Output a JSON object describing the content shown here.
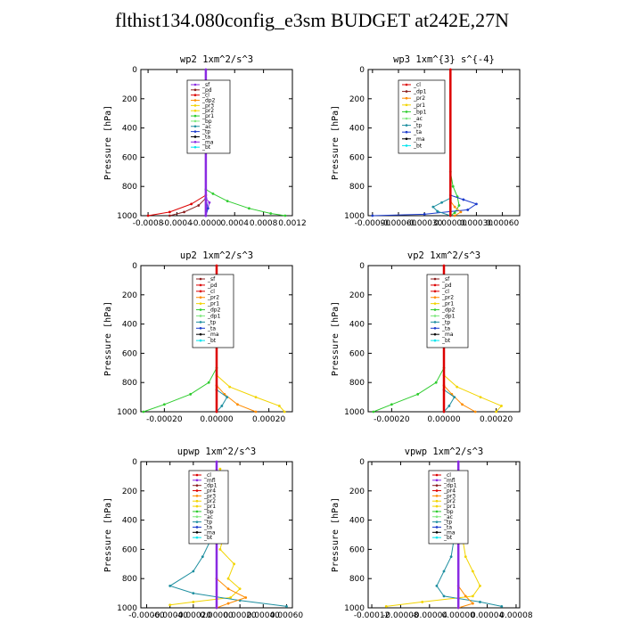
{
  "title": "flthist134.080config_e3sm  BUDGET at242E,27N",
  "colors": {
    "purple": "#8a2be2",
    "brown": "#8b2020",
    "red": "#dd0000",
    "orange": "#ff8c00",
    "yellow": "#f2d400",
    "green": "#2ecc2e",
    "ltgreen": "#7ee87e",
    "teal": "#1e8fa0",
    "blue": "#1a3acc",
    "black": "#000000",
    "cyan": "#00e5ee"
  },
  "chart_data": [
    {
      "type": "line",
      "title": "wp2   1xm^2/s^3",
      "ylabel": "Pressure [hPa]",
      "xlim": [
        -0.0009,
        0.0012
      ],
      "ylim": [
        1000,
        0
      ],
      "xticks": [
        "-0.0008",
        "-0.0004",
        "-0.0000",
        "0.0004",
        "0.0008",
        "0.0012"
      ],
      "xtick_values": [
        -0.0008,
        -0.0004,
        0,
        0.0004,
        0.0008,
        0.0012
      ],
      "yticks": [
        "0",
        "200",
        "400",
        "600",
        "800",
        "1000"
      ],
      "legend": [
        "_sf",
        "_pd",
        "_cl",
        "_dp2",
        "_pr3",
        "_pr2",
        "_pr1",
        "_bp",
        "_ac",
        "_tp",
        "_ta",
        "_ma",
        "_bt"
      ],
      "legend_colors": [
        "purple",
        "brown",
        "red",
        "orange",
        "yellow",
        "yellow",
        "green",
        "ltgreen",
        "teal",
        "blue",
        "black",
        "purple",
        "cyan"
      ],
      "series": [
        {
          "color": "green",
          "x": [
            0,
            0.0001,
            0.0003,
            0.0006,
            0.0009,
            0.0011
          ],
          "y": [
            820,
            850,
            900,
            950,
            985,
            1000
          ]
        },
        {
          "color": "red",
          "x": [
            0,
            -0.0002,
            -0.0005,
            -0.0008
          ],
          "y": [
            860,
            920,
            975,
            1000
          ]
        },
        {
          "color": "brown",
          "x": [
            0,
            -0.0001,
            -0.0003,
            -0.0005
          ],
          "y": [
            880,
            930,
            975,
            1000
          ]
        },
        {
          "color": "purple",
          "x": [
            0,
            5e-05,
            3e-05,
            0
          ],
          "y": [
            880,
            910,
            950,
            1000
          ]
        },
        {
          "color": "blue",
          "x": [
            0,
            3e-05,
            0
          ],
          "y": [
            880,
            950,
            1000
          ]
        },
        {
          "color": "purple",
          "x": [
            0,
            0
          ],
          "y": [
            0,
            1000
          ]
        }
      ]
    },
    {
      "type": "line",
      "title": "wp3   1xm^{3} s^{-4}",
      "ylabel": "Pressure [hPa]",
      "xlim": [
        -0.00095,
        0.0008
      ],
      "ylim": [
        1000,
        0
      ],
      "xticks": [
        "-0.00090",
        "-0.00060",
        "-0.00030",
        "0.00000",
        "0.00030",
        "0.00060"
      ],
      "xtick_values": [
        -0.0009,
        -0.0006,
        -0.0003,
        0,
        0.0003,
        0.0006
      ],
      "yticks": [
        "0",
        "200",
        "400",
        "600",
        "800",
        "1000"
      ],
      "legend": [
        "_cl",
        "_dp1",
        "_pr2",
        "_pr1",
        "_bp1",
        "_ac",
        "_tp",
        "_ta",
        "_ma",
        "_bt"
      ],
      "legend_colors": [
        "red",
        "brown",
        "orange",
        "yellow",
        "green",
        "ltgreen",
        "teal",
        "blue",
        "black",
        "cyan"
      ],
      "series": [
        {
          "color": "green",
          "x": [
            0,
            3e-05,
            8e-05,
            0.0001,
            5e-05,
            0
          ],
          "y": [
            700,
            800,
            870,
            930,
            980,
            1000
          ]
        },
        {
          "color": "blue",
          "x": [
            0,
            0.00015,
            0.0003,
            0.0002,
            -0.0003,
            -0.0009
          ],
          "y": [
            860,
            890,
            920,
            960,
            990,
            1000
          ]
        },
        {
          "color": "teal",
          "x": [
            0,
            -0.0001,
            -0.0002,
            -0.00015,
            0
          ],
          "y": [
            880,
            910,
            940,
            970,
            1000
          ]
        },
        {
          "color": "orange",
          "x": [
            0,
            5e-05,
            0.00012,
            5e-05
          ],
          "y": [
            900,
            940,
            975,
            1000
          ]
        },
        {
          "color": "red",
          "x": [
            0,
            0
          ],
          "y": [
            0,
            1000
          ]
        }
      ]
    },
    {
      "type": "line",
      "title": "up2   1xm^2/s^3",
      "ylabel": "Pressure [hPa]",
      "xlim": [
        -0.00029,
        0.00029
      ],
      "ylim": [
        1000,
        0
      ],
      "xticks": [
        "-0.00020",
        "0.00000",
        "0.00020"
      ],
      "xtick_values": [
        -0.0002,
        0,
        0.0002
      ],
      "yticks": [
        "0",
        "200",
        "400",
        "600",
        "800",
        "1000"
      ],
      "legend": [
        "_sf",
        "_pd",
        "_cl",
        "_pr2",
        "_pr1",
        "_dp2",
        "_dp1",
        "_tp",
        "_ta",
        "_ma",
        "_bt"
      ],
      "legend_colors": [
        "brown",
        "red",
        "red",
        "orange",
        "yellow",
        "green",
        "ltgreen",
        "teal",
        "blue",
        "black",
        "cyan"
      ],
      "series": [
        {
          "color": "green",
          "x": [
            0,
            -3e-05,
            -0.0001,
            -0.0002,
            -0.00028
          ],
          "y": [
            700,
            800,
            880,
            950,
            1000
          ]
        },
        {
          "color": "yellow",
          "x": [
            0,
            5e-05,
            0.00015,
            0.00024,
            0.00026
          ],
          "y": [
            750,
            830,
            900,
            960,
            1000
          ]
        },
        {
          "color": "orange",
          "x": [
            0,
            3e-05,
            8e-05,
            0.00015
          ],
          "y": [
            820,
            880,
            950,
            1000
          ]
        },
        {
          "color": "teal",
          "x": [
            0,
            4e-05,
            2e-05,
            0
          ],
          "y": [
            850,
            900,
            960,
            1000
          ]
        },
        {
          "color": "red",
          "x": [
            0,
            0
          ],
          "y": [
            0,
            1000
          ]
        }
      ]
    },
    {
      "type": "line",
      "title": "vp2   1xm^2/s^3",
      "ylabel": "Pressure [hPa]",
      "xlim": [
        -0.00029,
        0.00029
      ],
      "ylim": [
        1000,
        0
      ],
      "xticks": [
        "-0.00020",
        "0.00000",
        "0.00020"
      ],
      "xtick_values": [
        -0.0002,
        0,
        0.0002
      ],
      "yticks": [
        "0",
        "200",
        "400",
        "600",
        "800",
        "1000"
      ],
      "legend": [
        "_sf",
        "_pd",
        "_cl",
        "_pr2",
        "_pr1",
        "_dp2",
        "_dp1",
        "_tp",
        "_ta",
        "_ma",
        "_bt"
      ],
      "legend_colors": [
        "brown",
        "red",
        "red",
        "orange",
        "yellow",
        "green",
        "ltgreen",
        "teal",
        "blue",
        "black",
        "cyan"
      ],
      "series": [
        {
          "color": "green",
          "x": [
            0,
            -3e-05,
            -0.0001,
            -0.0002,
            -0.00027
          ],
          "y": [
            700,
            800,
            880,
            950,
            1000
          ]
        },
        {
          "color": "yellow",
          "x": [
            0,
            5e-05,
            0.00014,
            0.00022,
            0.0002
          ],
          "y": [
            750,
            830,
            900,
            960,
            1000
          ]
        },
        {
          "color": "orange",
          "x": [
            0,
            3e-05,
            7e-05,
            0.00012
          ],
          "y": [
            820,
            880,
            950,
            1000
          ]
        },
        {
          "color": "teal",
          "x": [
            0,
            4e-05,
            2e-05,
            0
          ],
          "y": [
            850,
            900,
            960,
            1000
          ]
        },
        {
          "color": "red",
          "x": [
            0,
            0
          ],
          "y": [
            0,
            1000
          ]
        }
      ]
    },
    {
      "type": "line",
      "title": "upwp   1xm^2/s^3",
      "ylabel": "Pressure [hPa]",
      "xlim": [
        -0.00065,
        0.00065
      ],
      "ylim": [
        1000,
        0
      ],
      "xticks": [
        "-0.00060",
        "-0.00040",
        "-0.00020",
        "0.00000",
        "0.00020",
        "0.00040",
        "0.00060"
      ],
      "xtick_values": [
        -0.0006,
        -0.0004,
        -0.0002,
        0,
        0.0002,
        0.0004,
        0.0006
      ],
      "yticks": [
        "0",
        "200",
        "400",
        "600",
        "800",
        "1000"
      ],
      "legend": [
        "_cl",
        "_mfl",
        "_dp1",
        "_pr4",
        "_pr3",
        "_pr2",
        "_pr1",
        "_bp",
        "_ac",
        "_tp",
        "_ta",
        "_ma",
        "_bt"
      ],
      "legend_colors": [
        "red",
        "purple",
        "brown",
        "red",
        "orange",
        "yellow",
        "yellow",
        "green",
        "ltgreen",
        "teal",
        "blue",
        "black",
        "cyan"
      ],
      "series": [
        {
          "color": "yellow",
          "x": [
            3e-05,
            6e-05,
            2e-05,
            8e-05,
            3e-05,
            0.00015,
            0.0001,
            0.0002,
            0.00012,
            -0.0002,
            -0.0004
          ],
          "y": [
            50,
            200,
            350,
            450,
            600,
            700,
            800,
            870,
            930,
            960,
            980
          ]
        },
        {
          "color": "teal",
          "x": [
            -3e-05,
            -5e-05,
            -0.0001,
            -6e-05,
            -0.00012,
            -0.0002,
            -0.0004,
            -0.0002,
            0.0002,
            0.0006
          ],
          "y": [
            100,
            250,
            400,
            550,
            650,
            750,
            850,
            900,
            950,
            990
          ]
        },
        {
          "color": "orange",
          "x": [
            0,
            0.0001,
            0.00025,
            0.0001,
            0
          ],
          "y": [
            800,
            870,
            930,
            970,
            1000
          ]
        },
        {
          "color": "purple",
          "x": [
            0,
            0
          ],
          "y": [
            0,
            1000
          ]
        }
      ]
    },
    {
      "type": "line",
      "title": "vpwp   1xm^2/s^3",
      "ylabel": "Pressure [hPa]",
      "xlim": [
        -0.000125,
        8.5e-05
      ],
      "ylim": [
        1000,
        0
      ],
      "xticks": [
        "-0.00012",
        "-0.00008",
        "-0.00004",
        "0.00000",
        "0.00004",
        "0.00008"
      ],
      "xtick_values": [
        -0.00012,
        -8e-05,
        -4e-05,
        0,
        4e-05,
        8e-05
      ],
      "yticks": [
        "0",
        "200",
        "400",
        "600",
        "800",
        "1000"
      ],
      "legend": [
        "_cl",
        "_mfl",
        "_dp1",
        "_pr4",
        "_pr3",
        "_pr2",
        "_pr1",
        "_bp",
        "_ac",
        "_tp",
        "_ta",
        "_ma",
        "_bt"
      ],
      "legend_colors": [
        "red",
        "purple",
        "brown",
        "red",
        "orange",
        "yellow",
        "yellow",
        "green",
        "ltgreen",
        "teal",
        "blue",
        "black",
        "cyan"
      ],
      "series": [
        {
          "color": "yellow",
          "x": [
            0,
            5e-06,
            1e-05,
            2e-05,
            3e-05,
            2e-05,
            -5e-05,
            -0.0001
          ],
          "y": [
            300,
            500,
            650,
            750,
            850,
            920,
            960,
            990
          ]
        },
        {
          "color": "teal",
          "x": [
            0,
            -5e-06,
            -1e-05,
            -2e-05,
            -3e-05,
            -2e-05,
            3e-05,
            6e-05
          ],
          "y": [
            300,
            500,
            650,
            750,
            850,
            920,
            960,
            990
          ]
        },
        {
          "color": "orange",
          "x": [
            0,
            1e-05,
            2e-05,
            0
          ],
          "y": [
            850,
            920,
            970,
            1000
          ]
        },
        {
          "color": "purple",
          "x": [
            0,
            0
          ],
          "y": [
            0,
            1000
          ]
        }
      ]
    }
  ]
}
